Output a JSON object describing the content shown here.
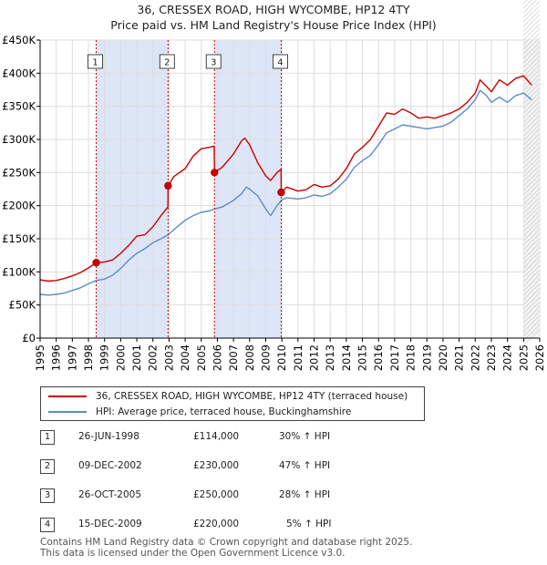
{
  "header": {
    "title_line1": "36, CRESSEX ROAD, HIGH WYCOMBE, HP12 4TY",
    "title_line2": "Price paid vs. HM Land Registry's House Price Index (HPI)"
  },
  "colors": {
    "property": "#cc0000",
    "hpi": "#5b8cc8",
    "shade": "#dde6f7",
    "grid": "#dddddd",
    "marker_line": "#cc0000"
  },
  "chart_data": {
    "type": "line",
    "title": "36, CRESSEX ROAD, HIGH WYCOMBE, HP12 4TY",
    "xlabel": "",
    "ylabel": "",
    "xlim": [
      1995,
      2026
    ],
    "ylim": [
      0,
      450000
    ],
    "y_ticks": [
      0,
      50000,
      100000,
      150000,
      200000,
      250000,
      300000,
      350000,
      400000,
      450000
    ],
    "y_tick_labels": [
      "£0",
      "£50K",
      "£100K",
      "£150K",
      "£200K",
      "£250K",
      "£300K",
      "£350K",
      "£400K",
      "£450K"
    ],
    "x_ticks": [
      1995,
      1996,
      1997,
      1998,
      1999,
      2000,
      2001,
      2002,
      2003,
      2004,
      2005,
      2006,
      2007,
      2008,
      2009,
      2010,
      2011,
      2012,
      2013,
      2014,
      2015,
      2016,
      2017,
      2018,
      2019,
      2020,
      2021,
      2022,
      2023,
      2024,
      2025,
      2026
    ],
    "x_tick_labels": [
      "1995",
      "1996",
      "1997",
      "1998",
      "1999",
      "2000",
      "2001",
      "2002",
      "2003",
      "2004",
      "2005",
      "2006",
      "2007",
      "2008",
      "2009",
      "2010",
      "2011",
      "2012",
      "2013",
      "2014",
      "2015",
      "2016",
      "2017",
      "2018",
      "2019",
      "2020",
      "2021",
      "2022",
      "2023",
      "2024",
      "2025",
      "2026"
    ],
    "shaded_ranges": [
      [
        1998.48,
        2002.94
      ],
      [
        2005.82,
        2009.96
      ]
    ],
    "forecast_from": 2025.0,
    "series": [
      {
        "name": "36, CRESSEX ROAD, HIGH WYCOMBE, HP12 4TY (terraced house)",
        "x": [
          1995.0,
          1995.5,
          1996.0,
          1996.5,
          1997.0,
          1997.5,
          1998.0,
          1998.48,
          1999.0,
          1999.5,
          2000.0,
          2000.5,
          2001.0,
          2001.5,
          2002.0,
          2002.5,
          2002.93,
          2002.94,
          2003.3,
          2004.0,
          2004.5,
          2005.0,
          2005.5,
          2005.8,
          2005.82,
          2006.3,
          2007.0,
          2007.5,
          2007.7,
          2008.0,
          2008.5,
          2009.0,
          2009.3,
          2009.7,
          2009.95,
          2009.96,
          2010.3,
          2011.0,
          2011.5,
          2012.0,
          2012.5,
          2013.0,
          2013.5,
          2014.0,
          2014.5,
          2015.0,
          2015.5,
          2016.0,
          2016.5,
          2017.0,
          2017.5,
          2018.0,
          2018.5,
          2019.0,
          2019.5,
          2020.0,
          2020.5,
          2021.0,
          2021.5,
          2022.0,
          2022.3,
          2022.7,
          2023.0,
          2023.5,
          2024.0,
          2024.5,
          2025.0,
          2025.5
        ],
        "y": [
          88000,
          86000,
          87000,
          90000,
          94000,
          99000,
          106000,
          114000,
          115000,
          118000,
          128000,
          140000,
          154000,
          156000,
          168000,
          185000,
          198000,
          230000,
          244000,
          256000,
          275000,
          286000,
          288000,
          290000,
          250000,
          258000,
          278000,
          298000,
          302000,
          292000,
          265000,
          245000,
          238000,
          250000,
          255000,
          220000,
          228000,
          222000,
          224000,
          232000,
          228000,
          230000,
          240000,
          256000,
          278000,
          288000,
          300000,
          320000,
          340000,
          338000,
          346000,
          340000,
          332000,
          334000,
          332000,
          336000,
          340000,
          346000,
          356000,
          370000,
          390000,
          380000,
          372000,
          390000,
          382000,
          392000,
          396000,
          382000
        ]
      },
      {
        "name": "HPI: Average price, terraced house, Buckinghamshire",
        "x": [
          1995.0,
          1995.5,
          1996.0,
          1996.5,
          1997.0,
          1997.5,
          1998.0,
          1998.48,
          1999.0,
          1999.5,
          2000.0,
          2000.5,
          2001.0,
          2001.5,
          2002.0,
          2002.5,
          2002.94,
          2003.5,
          2004.0,
          2004.5,
          2005.0,
          2005.5,
          2005.82,
          2006.3,
          2007.0,
          2007.5,
          2007.8,
          2008.0,
          2008.5,
          2009.0,
          2009.3,
          2009.7,
          2009.96,
          2010.3,
          2011.0,
          2011.5,
          2012.0,
          2012.5,
          2013.0,
          2013.5,
          2014.0,
          2014.5,
          2015.0,
          2015.5,
          2016.0,
          2016.5,
          2017.0,
          2017.5,
          2018.0,
          2018.5,
          2019.0,
          2019.5,
          2020.0,
          2020.5,
          2021.0,
          2021.5,
          2022.0,
          2022.3,
          2022.7,
          2023.0,
          2023.5,
          2024.0,
          2024.5,
          2025.0,
          2025.5
        ],
        "y": [
          66000,
          65000,
          66000,
          68000,
          72000,
          76000,
          82000,
          87000,
          89000,
          95000,
          105000,
          118000,
          128000,
          135000,
          144000,
          150000,
          156000,
          168000,
          178000,
          185000,
          190000,
          192000,
          195000,
          198000,
          208000,
          218000,
          228000,
          225000,
          215000,
          195000,
          185000,
          200000,
          208000,
          212000,
          210000,
          212000,
          216000,
          214000,
          218000,
          228000,
          240000,
          258000,
          268000,
          276000,
          292000,
          310000,
          316000,
          322000,
          320000,
          318000,
          316000,
          318000,
          320000,
          326000,
          336000,
          346000,
          360000,
          374000,
          366000,
          356000,
          364000,
          356000,
          366000,
          370000,
          360000
        ]
      }
    ],
    "sales": [
      {
        "label": "1",
        "x": 1998.48,
        "y": 114000
      },
      {
        "label": "2",
        "x": 2002.94,
        "y": 230000
      },
      {
        "label": "3",
        "x": 2005.82,
        "y": 250000
      },
      {
        "label": "4",
        "x": 2009.96,
        "y": 220000
      }
    ]
  },
  "legend": {
    "property_label": "36, CRESSEX ROAD, HIGH WYCOMBE, HP12 4TY (terraced house)",
    "hpi_label": "HPI: Average price, terraced house, Buckinghamshire"
  },
  "transactions": [
    {
      "num": "1",
      "date": "26-JUN-1998",
      "price": "£114,000",
      "hpi": "30% ↑ HPI"
    },
    {
      "num": "2",
      "date": "09-DEC-2002",
      "price": "£230,000",
      "hpi": "47% ↑ HPI"
    },
    {
      "num": "3",
      "date": "26-OCT-2005",
      "price": "£250,000",
      "hpi": "28% ↑ HPI"
    },
    {
      "num": "4",
      "date": "15-DEC-2009",
      "price": "£220,000",
      "hpi": "5% ↑ HPI"
    }
  ],
  "footer": {
    "line1": "Contains HM Land Registry data © Crown copyright and database right 2025.",
    "line2": "This data is licensed under the Open Government Licence v3.0."
  }
}
